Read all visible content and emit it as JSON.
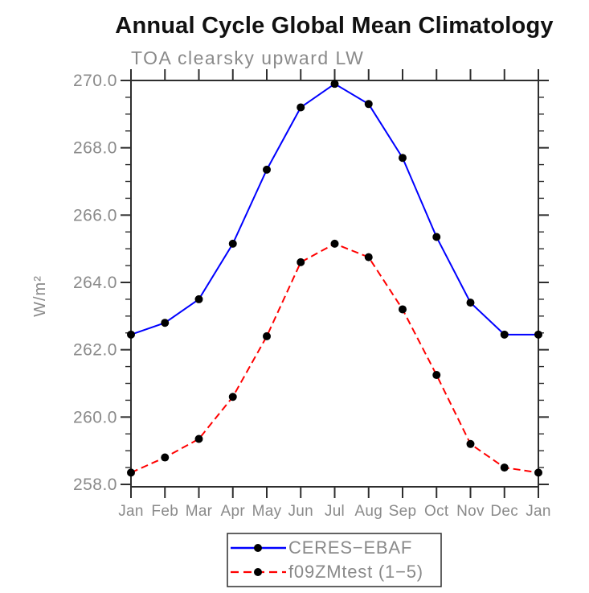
{
  "title": "Annual Cycle Global Mean Climatology",
  "subtitle": "TOA clearsky upward LW",
  "ylabel": "W/m²",
  "colors": {
    "axis": "#2e2e2e",
    "labels": "#8a8a8a",
    "series1": "#0000ff",
    "series2": "#ff0000",
    "marker": "#000000",
    "title": "#111111"
  },
  "chart_data": {
    "type": "line",
    "title": "Annual Cycle Global Mean Climatology",
    "subtitle": "TOA clearsky upward LW",
    "xlabel": "",
    "ylabel": "W/m²",
    "categories": [
      "Jan",
      "Feb",
      "Mar",
      "Apr",
      "May",
      "Jun",
      "Jul",
      "Aug",
      "Sep",
      "Oct",
      "Nov",
      "Dec",
      "Jan"
    ],
    "series": [
      {
        "name": "CERES−EBAF",
        "color": "#0000ff",
        "line_style": "solid",
        "marker": "filled-circle",
        "values": [
          262.45,
          262.8,
          263.5,
          265.15,
          267.35,
          269.2,
          269.9,
          269.3,
          267.7,
          265.35,
          263.4,
          262.45,
          262.45
        ]
      },
      {
        "name": "f09ZMtest (1−5)",
        "color": "#ff0000",
        "line_style": "dashed",
        "marker": "filled-circle",
        "values": [
          258.35,
          258.8,
          259.35,
          260.6,
          262.4,
          264.6,
          265.15,
          264.75,
          263.2,
          261.25,
          259.2,
          258.5,
          258.35
        ]
      }
    ],
    "ylim": [
      258.0,
      270.0
    ],
    "ytick_step": 2.0,
    "yminor_step": 0.5,
    "ytick_labels": [
      "258.0",
      "260.0",
      "262.0",
      "264.0",
      "266.0",
      "268.0",
      "270.0"
    ],
    "grid": false,
    "frame": "box",
    "legend_position": "bottom-center"
  }
}
